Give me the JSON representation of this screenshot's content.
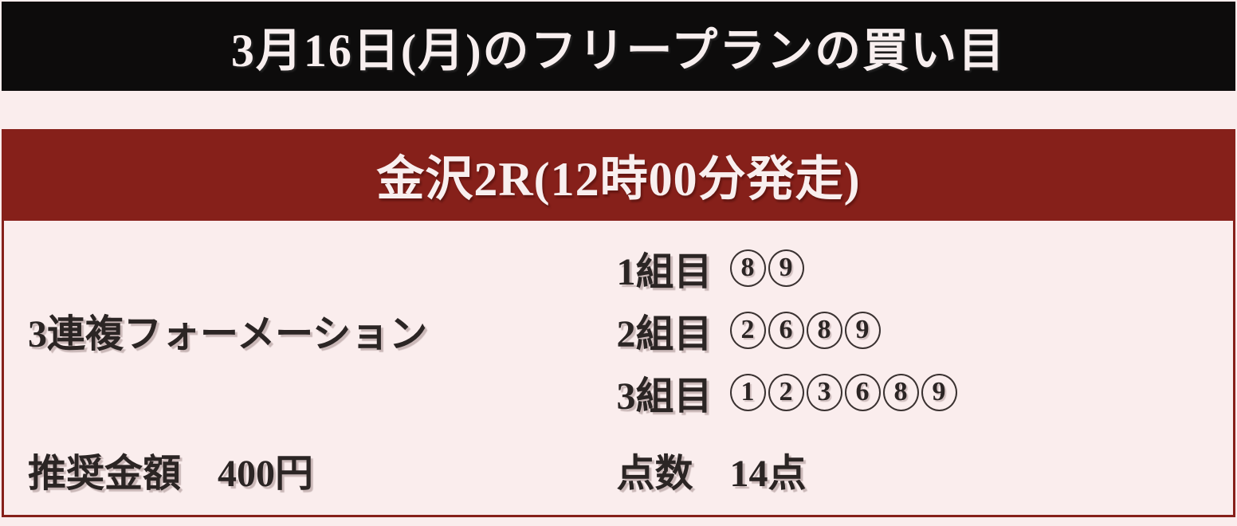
{
  "theme": {
    "page-bg": "#FAEDED",
    "banner-bg": "#0D0C0C",
    "banner-text": "#F8EFEF",
    "accent-red": "#86201A",
    "content-text": "#2B2524"
  },
  "banner": {
    "title": "3月16日(月)のフリープランの買い目"
  },
  "race_card": {
    "title": "金沢2R(12時00分発走)",
    "bet_type": "3連複フォーメーション",
    "groups": [
      {
        "label": "1組目",
        "numbers": [
          "8",
          "9"
        ]
      },
      {
        "label": "2組目",
        "numbers": [
          "2",
          "6",
          "8",
          "9"
        ]
      },
      {
        "label": "3組目",
        "numbers": [
          "1",
          "2",
          "3",
          "6",
          "8",
          "9"
        ]
      }
    ],
    "amount": {
      "label": "推奨金額",
      "value": "400円"
    },
    "points": {
      "label": "点数",
      "value": "14点"
    }
  }
}
